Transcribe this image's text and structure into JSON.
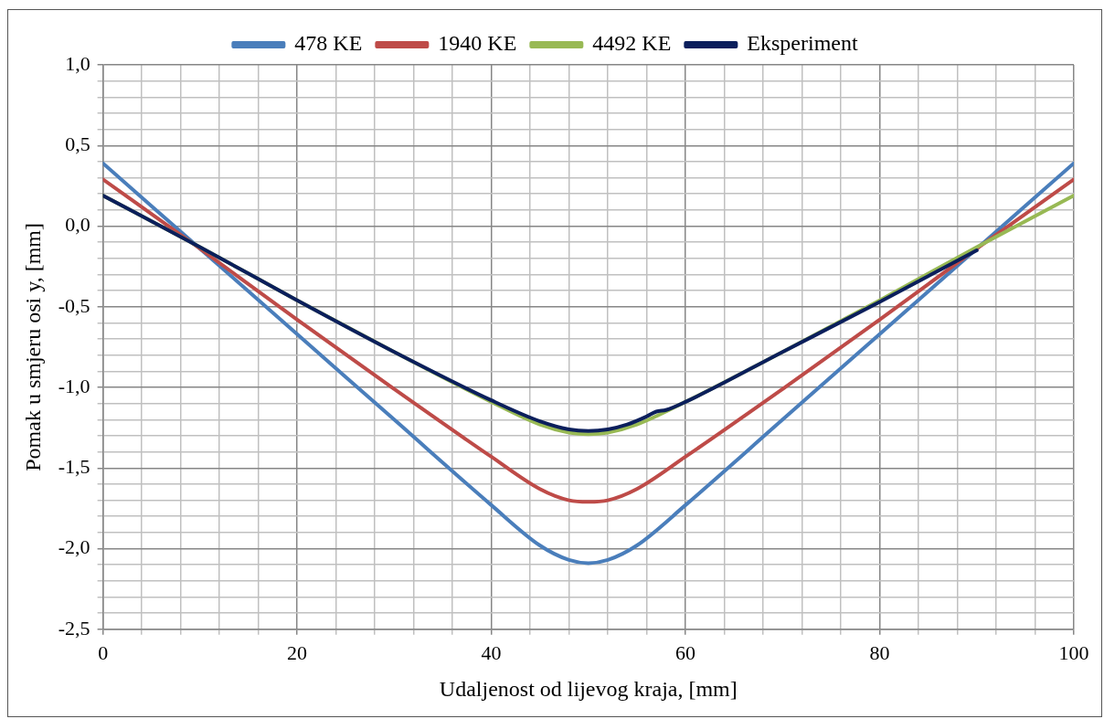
{
  "chart_data": {
    "type": "line",
    "xlabel": "Udaljenost od lijevog kraja, [mm]",
    "ylabel": "Pomak u smjeru osi y, [mm]",
    "series": [
      {
        "name": "478 KE",
        "color": "#4a7ebb",
        "x": [
          0,
          10,
          20,
          30,
          40,
          45,
          48,
          50,
          52,
          55,
          60,
          70,
          80,
          90,
          100
        ],
        "values": [
          0.39,
          -0.14,
          -0.67,
          -1.2,
          -1.73,
          -1.98,
          -2.07,
          -2.09,
          -2.07,
          -1.98,
          -1.73,
          -1.2,
          -0.67,
          -0.14,
          0.39
        ]
      },
      {
        "name": "1940 KE",
        "color": "#be4b48",
        "x": [
          0,
          10,
          20,
          30,
          40,
          45,
          48,
          50,
          52,
          55,
          60,
          70,
          80,
          90,
          100
        ],
        "values": [
          0.29,
          -0.14,
          -0.58,
          -1.01,
          -1.43,
          -1.63,
          -1.7,
          -1.71,
          -1.7,
          -1.63,
          -1.43,
          -1.01,
          -0.58,
          -0.14,
          0.29
        ]
      },
      {
        "name": "4492 KE",
        "color": "#98b954",
        "x": [
          0,
          10,
          20,
          30,
          40,
          45,
          48,
          50,
          52,
          55,
          60,
          70,
          80,
          90,
          100
        ],
        "values": [
          0.19,
          -0.13,
          -0.46,
          -0.78,
          -1.09,
          -1.23,
          -1.28,
          -1.29,
          -1.28,
          -1.23,
          -1.09,
          -0.78,
          -0.46,
          -0.13,
          0.19
        ]
      },
      {
        "name": "Eksperiment",
        "color": "#0b1f5c",
        "x": [
          0,
          10,
          20,
          30,
          40,
          45,
          48,
          50,
          52,
          54,
          56,
          57,
          58,
          60,
          70,
          80,
          90
        ],
        "values": [
          0.19,
          -0.13,
          -0.46,
          -0.78,
          -1.08,
          -1.21,
          -1.26,
          -1.27,
          -1.26,
          -1.23,
          -1.18,
          -1.15,
          -1.14,
          -1.09,
          -0.78,
          -0.47,
          -0.15
        ]
      }
    ],
    "xlim": [
      0,
      100
    ],
    "xticks": [
      0,
      {
        "value": 4,
        "label": null
      },
      {
        "value": 8,
        "label": null
      },
      {
        "value": 12,
        "label": null
      },
      {
        "value": 16,
        "label": null
      },
      20,
      {
        "value": 24,
        "label": null
      },
      {
        "value": 28,
        "label": null
      },
      {
        "value": 32,
        "label": null
      },
      {
        "value": 36,
        "label": null
      },
      40,
      {
        "value": 44,
        "label": null
      },
      {
        "value": 48,
        "label": null
      },
      {
        "value": 52,
        "label": null
      },
      {
        "value": 56,
        "label": null
      },
      60,
      {
        "value": 64,
        "label": null
      },
      {
        "value": 68,
        "label": null
      },
      {
        "value": 72,
        "label": null
      },
      {
        "value": 76,
        "label": null
      },
      80,
      {
        "value": 84,
        "label": null
      },
      {
        "value": 88,
        "label": null
      },
      {
        "value": 92,
        "label": null
      },
      {
        "value": 96,
        "label": null
      },
      100
    ],
    "ylim": [
      -2.5,
      1
    ],
    "yticks": [
      {
        "value": -2.5,
        "label": "-2,5"
      },
      {
        "value": -2.4,
        "label": null
      },
      {
        "value": -2.3,
        "label": null
      },
      {
        "value": -2.2,
        "label": null
      },
      {
        "value": -2.1,
        "label": null
      },
      {
        "value": -2,
        "label": "-2,0"
      },
      {
        "value": -1.9,
        "label": null
      },
      {
        "value": -1.8,
        "label": null
      },
      {
        "value": -1.7,
        "label": null
      },
      {
        "value": -1.6,
        "label": null
      },
      {
        "value": -1.5,
        "label": "-1,5"
      },
      {
        "value": -1.4,
        "label": null
      },
      {
        "value": -1.3,
        "label": null
      },
      {
        "value": -1.2,
        "label": null
      },
      {
        "value": -1.1,
        "label": null
      },
      {
        "value": -1,
        "label": "-1,0"
      },
      {
        "value": -0.9,
        "label": null
      },
      {
        "value": -0.8,
        "label": null
      },
      {
        "value": -0.7,
        "label": null
      },
      {
        "value": -0.6,
        "label": null
      },
      {
        "value": -0.5,
        "label": "-0,5"
      },
      {
        "value": -0.4,
        "label": null
      },
      {
        "value": -0.3,
        "label": null
      },
      {
        "value": -0.2,
        "label": null
      },
      {
        "value": -0.1,
        "label": null
      },
      {
        "value": 0,
        "label": "0,0"
      },
      {
        "value": 0.1,
        "label": null
      },
      {
        "value": 0.2,
        "label": null
      },
      {
        "value": 0.3,
        "label": null
      },
      {
        "value": 0.4,
        "label": null
      },
      {
        "value": 0.5,
        "label": "0,5"
      },
      {
        "value": 0.6,
        "label": null
      },
      {
        "value": 0.7,
        "label": null
      },
      {
        "value": 0.8,
        "label": null
      },
      {
        "value": 0.9,
        "label": null
      },
      {
        "value": 1,
        "label": "1,0"
      }
    ],
    "grid": true,
    "legend": "top",
    "marker": "none",
    "line_style": "solid"
  }
}
